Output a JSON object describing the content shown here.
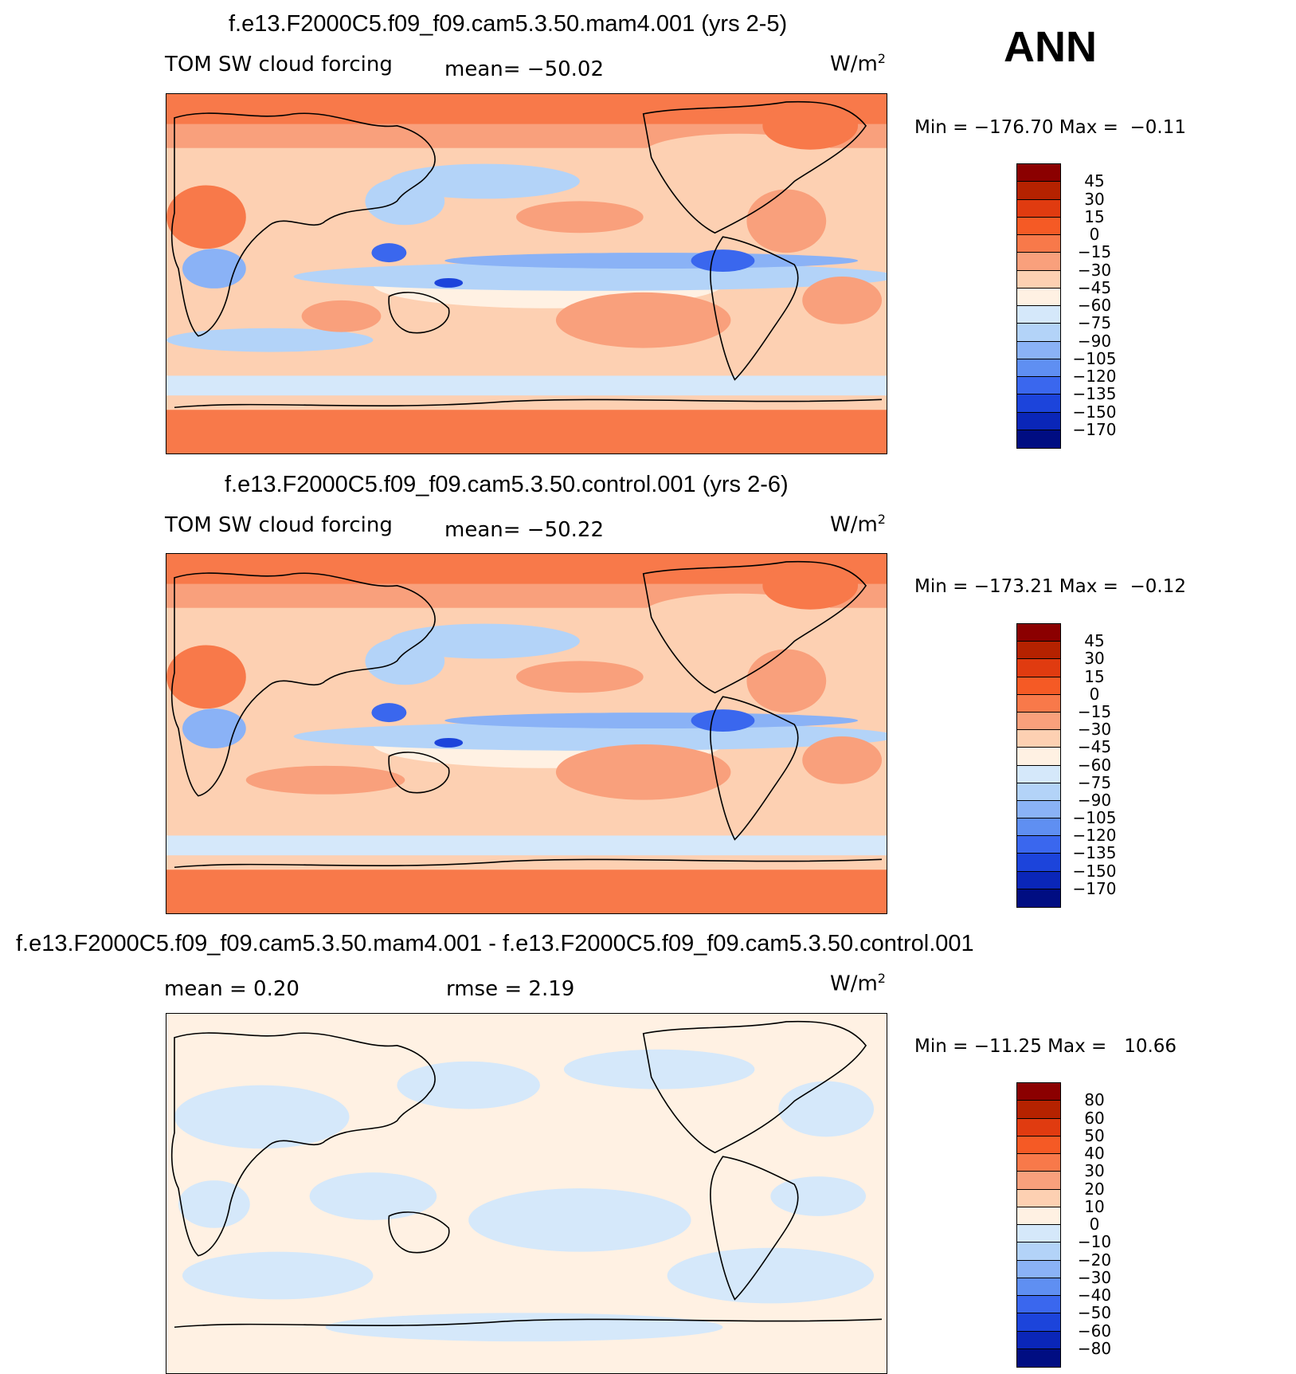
{
  "season": "ANN",
  "panels": [
    {
      "title": "f.e13.F2000C5.f09_f09.cam5.3.50.mam4.001 (yrs 2-5)",
      "variable": "TOM SW cloud forcing",
      "stat1": "mean= −50.02",
      "stat2": "",
      "units": "W/m",
      "units_sup": "2",
      "minmax": "Min = −176.70 Max =  −0.11",
      "legend_levels": [
        "45",
        "30",
        "15",
        "0",
        "−15",
        "−30",
        "−45",
        "−60",
        "−75",
        "−90",
        "−105",
        "−120",
        "−135",
        "−150",
        "−170"
      ],
      "legend_colors": [
        "#8b0000",
        "#b52200",
        "#e03b10",
        "#f55a25",
        "#f8794a",
        "#f9a07c",
        "#fdd0b2",
        "#fff1e3",
        "#d5e8fa",
        "#b3d3f8",
        "#8ab2f6",
        "#5f8ff2",
        "#3a67ee",
        "#1c44db",
        "#0a26b8",
        "#000d82"
      ]
    },
    {
      "title": "f.e13.F2000C5.f09_f09.cam5.3.50.control.001 (yrs 2-6)",
      "variable": "TOM SW cloud forcing",
      "stat1": "mean= −50.22",
      "stat2": "",
      "units": "W/m",
      "units_sup": "2",
      "minmax": "Min = −173.21 Max =  −0.12",
      "legend_levels": [
        "45",
        "30",
        "15",
        "0",
        "−15",
        "−30",
        "−45",
        "−60",
        "−75",
        "−90",
        "−105",
        "−120",
        "−135",
        "−150",
        "−170"
      ],
      "legend_colors": [
        "#8b0000",
        "#b52200",
        "#e03b10",
        "#f55a25",
        "#f8794a",
        "#f9a07c",
        "#fdd0b2",
        "#fff1e3",
        "#d5e8fa",
        "#b3d3f8",
        "#8ab2f6",
        "#5f8ff2",
        "#3a67ee",
        "#1c44db",
        "#0a26b8",
        "#000d82"
      ]
    },
    {
      "title": "f.e13.F2000C5.f09_f09.cam5.3.50.mam4.001 - f.e13.F2000C5.f09_f09.cam5.3.50.control.001",
      "variable": "",
      "stat1": "mean =    0.20",
      "stat2": "rmse =    2.19",
      "units": "W/m",
      "units_sup": "2",
      "minmax": "Min = −11.25 Max =   10.66",
      "legend_levels": [
        "80",
        "60",
        "50",
        "40",
        "30",
        "20",
        "10",
        "0",
        "−10",
        "−20",
        "−30",
        "−40",
        "−50",
        "−60",
        "−80"
      ],
      "legend_colors": [
        "#8b0000",
        "#b52200",
        "#e03b10",
        "#f55a25",
        "#f8794a",
        "#f9a07c",
        "#fdd0b2",
        "#fff1e3",
        "#d5e8fa",
        "#b3d3f8",
        "#8ab2f6",
        "#5f8ff2",
        "#3a67ee",
        "#1c44db",
        "#0a26b8",
        "#000d82"
      ]
    }
  ],
  "chart_data": [
    {
      "type": "heatmap",
      "title": "f.e13.F2000C5.f09_f09.cam5.3.50.mam4.001 (yrs 2-5)",
      "variable": "TOM SW cloud forcing",
      "units": "W/m2",
      "mean": -50.02,
      "min": -176.7,
      "max": -0.11,
      "contour_levels": [
        45,
        30,
        15,
        0,
        -15,
        -30,
        -45,
        -60,
        -75,
        -90,
        -105,
        -120,
        -135,
        -150,
        -170
      ]
    },
    {
      "type": "heatmap",
      "title": "f.e13.F2000C5.f09_f09.cam5.3.50.control.001 (yrs 2-6)",
      "variable": "TOM SW cloud forcing",
      "units": "W/m2",
      "mean": -50.22,
      "min": -173.21,
      "max": -0.12,
      "contour_levels": [
        45,
        30,
        15,
        0,
        -15,
        -30,
        -45,
        -60,
        -75,
        -90,
        -105,
        -120,
        -135,
        -150,
        -170
      ]
    },
    {
      "type": "heatmap",
      "title": "f.e13.F2000C5.f09_f09.cam5.3.50.mam4.001 - f.e13.F2000C5.f09_f09.cam5.3.50.control.001",
      "units": "W/m2",
      "mean": 0.2,
      "rmse": 2.19,
      "min": -11.25,
      "max": 10.66,
      "contour_levels": [
        80,
        60,
        50,
        40,
        30,
        20,
        10,
        0,
        -10,
        -20,
        -30,
        -40,
        -50,
        -60,
        -80
      ]
    }
  ]
}
